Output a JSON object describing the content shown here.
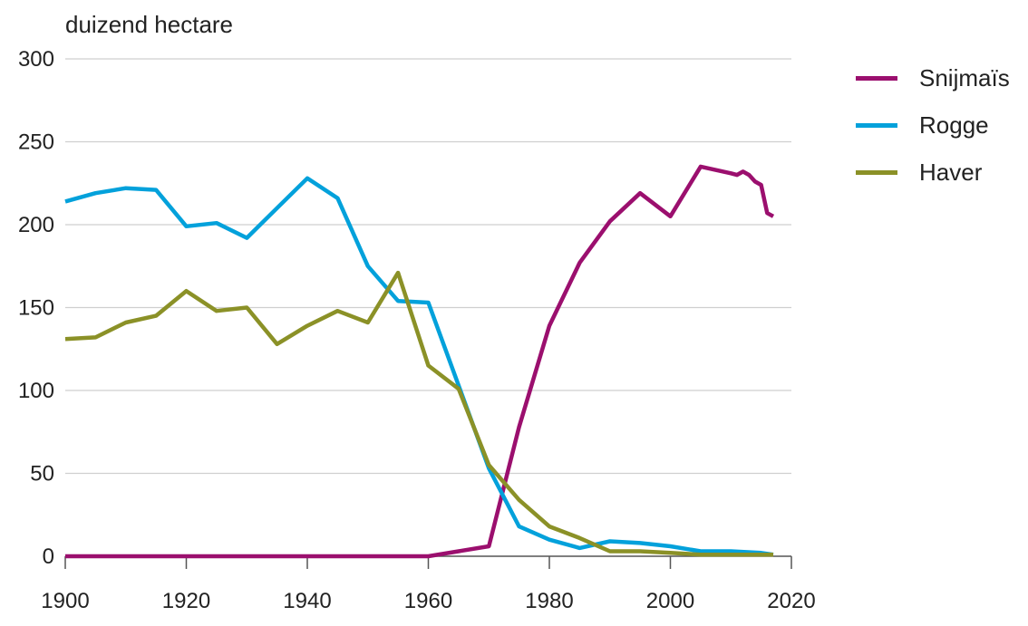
{
  "chart_data": {
    "type": "line",
    "ylabel": "duizend hectare",
    "xlabel": "",
    "xlim": [
      1900,
      2020
    ],
    "ylim": [
      0,
      300
    ],
    "x_ticks": [
      1900,
      1920,
      1940,
      1960,
      1980,
      2000,
      2020
    ],
    "y_ticks": [
      0,
      50,
      100,
      150,
      200,
      250,
      300
    ],
    "grid": "horizontal",
    "legend_position": "right",
    "series": [
      {
        "name": "Snijmaïs",
        "color": "#9b0f6e",
        "x": [
          1900,
          1905,
          1910,
          1915,
          1920,
          1925,
          1930,
          1935,
          1940,
          1945,
          1950,
          1955,
          1960,
          1965,
          1970,
          1975,
          1980,
          1985,
          1990,
          1995,
          2000,
          2005,
          2010,
          2011,
          2012,
          2013,
          2014,
          2015,
          2016,
          2017
        ],
        "values": [
          0,
          0,
          0,
          0,
          0,
          0,
          0,
          0,
          0,
          0,
          0,
          0,
          0,
          3,
          6,
          78,
          139,
          177,
          202,
          219,
          205,
          235,
          231,
          230,
          232,
          230,
          226,
          224,
          207,
          205
        ]
      },
      {
        "name": "Rogge",
        "color": "#03a1db",
        "x": [
          1900,
          1905,
          1910,
          1915,
          1920,
          1925,
          1930,
          1935,
          1940,
          1945,
          1950,
          1955,
          1960,
          1965,
          1970,
          1975,
          1980,
          1985,
          1990,
          1995,
          2000,
          2005,
          2010,
          2015,
          2017
        ],
        "values": [
          214,
          219,
          222,
          221,
          199,
          201,
          192,
          210,
          228,
          216,
          175,
          154,
          153,
          103,
          53,
          18,
          10,
          5,
          9,
          8,
          6,
          3,
          3,
          2,
          1
        ]
      },
      {
        "name": "Haver",
        "color": "#8b9127",
        "x": [
          1900,
          1905,
          1910,
          1915,
          1920,
          1925,
          1930,
          1935,
          1940,
          1945,
          1950,
          1955,
          1960,
          1965,
          1970,
          1975,
          1980,
          1985,
          1990,
          1995,
          2000,
          2005,
          2010,
          2015,
          2017
        ],
        "values": [
          131,
          132,
          141,
          145,
          160,
          148,
          150,
          128,
          139,
          148,
          141,
          171,
          115,
          101,
          55,
          34,
          18,
          11,
          3,
          3,
          2,
          1,
          1,
          1,
          1
        ]
      }
    ]
  }
}
